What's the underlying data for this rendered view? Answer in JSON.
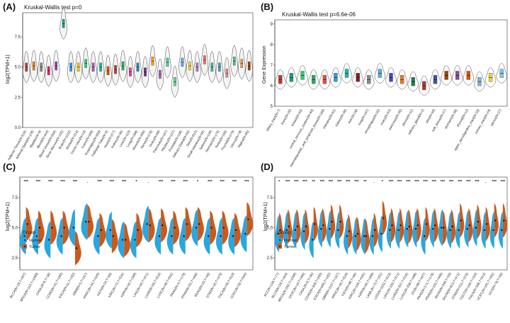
{
  "figure": {
    "colors": {
      "normal": "#2aa6e0",
      "tumor": "#c85a1e",
      "star": "#111111"
    },
    "panel_letters": [
      "(A)",
      "(B)",
      "(C)",
      "(D)"
    ]
  },
  "chart_data": [
    {
      "id": "A",
      "type": "violin",
      "title": "Kruskal-Wallis test p=0",
      "ylabel": "log2(TPM+1)",
      "yticks": [
        0.0,
        2.5,
        5.0,
        7.5
      ],
      "ylim": [
        0,
        9.5
      ],
      "categories": [
        "Adipose Tissue(N=515)",
        "Adrenal Gland(N=128)",
        "Bladder(N=9)",
        "Blood(N=444)",
        "Blood Vessel(N=656)",
        "Bone Marrow(N=102)",
        "Brain(N=1152)",
        "Breast(N=214)",
        "Cervix Uteri(N=10)",
        "Colon(N=339)",
        "Esophagus(N=659)",
        "Fallopian Tube(N=5)",
        "Heart(N=377)",
        "Kidney(N=36)",
        "Liver(N=110)",
        "Lung(N=288)",
        "Muscle(N=396)",
        "Nerve(N=278)",
        "Ovary(N=88)",
        "Pancreas(N=167)",
        "Pituitary(N=107)",
        "Prostate(N=106)",
        "Salivary Gland(N=55)",
        "Skin(N=812)",
        "Small Intestine(N=92)",
        "Spleen(N=100)",
        "Stomach(N=175)",
        "Testis(N=165)",
        "Thyroid(N=279)",
        "Uterus(N=78)",
        "Vagina(N=85)"
      ],
      "medians": [
        5.0,
        5.1,
        5.0,
        4.7,
        5.1,
        8.6,
        5.0,
        5.0,
        5.3,
        5.0,
        5.0,
        4.7,
        4.8,
        5.1,
        4.6,
        5.0,
        4.6,
        5.5,
        4.4,
        5.4,
        3.8,
        5.4,
        5.1,
        5.0,
        5.6,
        5.0,
        5.0,
        4.5,
        5.5,
        5.3,
        5.1
      ],
      "colors": [
        "#c0392b",
        "#e67e22",
        "#7f8c8d",
        "#e91e63",
        "#8e44ad",
        "#16a085",
        "#3498db",
        "#f1c40f",
        "#2ecc71",
        "#9b59b6",
        "#1abc9c",
        "#d35400",
        "#c0392b",
        "#27ae60",
        "#e84393",
        "#2980b9",
        "#6c3483",
        "#f39c12",
        "#a569bd",
        "#48c9b0",
        "#58d68d",
        "#5dade2",
        "#f4d03f",
        "#af7ac5",
        "#ec7063",
        "#45b39d",
        "#5499c7",
        "#d98880",
        "#52be80",
        "#eb984e",
        "#a04000"
      ]
    },
    {
      "id": "B",
      "type": "violin",
      "title": "Kruskal-Wallis test p=6.6e-06",
      "ylabel": "Gene Expression",
      "yticks": [
        5,
        6,
        7,
        8,
        9
      ],
      "ylim": [
        5,
        9.2
      ],
      "categories": [
        "biliary_tract(N=7)",
        "bone(N=26)",
        "breast(N=60)",
        "central_nervous_system(N=69)",
        "haematopoietic_and_lymphoid_tissue(N=189)",
        "intestine(N=61)",
        "kidney(N=36)",
        "liver(N=28)",
        "lung(N=197)",
        "oesophagus(N=32)",
        "ovary(N=52)",
        "pancreas(N=35)",
        "pleura(N=11)",
        "salivary_gland(N=2)",
        "skin(N=59)",
        "soft_tissue(N=27)",
        "stomach(N=38)",
        "thyroid(N=12)",
        "upper_aerodigestive_tract(N=33)",
        "urinary_tract(N=24)",
        "uterus(N=27)"
      ],
      "medians": [
        6.3,
        6.4,
        6.5,
        6.3,
        6.3,
        6.4,
        6.6,
        6.4,
        6.3,
        6.6,
        6.4,
        6.3,
        6.2,
        6.0,
        6.3,
        6.5,
        6.5,
        6.5,
        6.2,
        6.4,
        6.6
      ],
      "colors": [
        "#c0392b",
        "#16a085",
        "#2ecc71",
        "#27ae60",
        "#e74c3c",
        "#3498db",
        "#1abc9c",
        "#8e1b1b",
        "#7f8c8d",
        "#5dade2",
        "#3b4cc0",
        "#e67e22",
        "#1e8449",
        "#b03a2e",
        "#3f51b5",
        "#a04000",
        "#884ea0",
        "#d35400",
        "#7fb3d5",
        "#e9d33b",
        "#85c1e9"
      ]
    },
    {
      "id": "C",
      "type": "split-violin",
      "ylabel": "log2(TPM+1)",
      "yticks": [
        2.5,
        5.0,
        7.5
      ],
      "ylim": [
        1.5,
        9.2
      ],
      "legend": {
        "title": "Group",
        "entries": [
          "Normal",
          "Tumor"
        ],
        "position": "bottom-left"
      },
      "categories": [
        "BLCA(N=19,T=407)",
        "BRCA(N=113,T=1099)",
        "CHOL(N=9,T=36)",
        "COAD(N=41,T=290)",
        "ESCA(N=11,T=182)",
        "GBM(N=5,T=167)",
        "HNSC(N=44,T=520)",
        "KICH(N=24,T=66)",
        "KIRC(N=72,T=531)",
        "KIRP(N=32,T=289)",
        "LIHC(N=50,T=371)",
        "LUAD(N=59,T=515)",
        "LUSC(N=49,T=501)",
        "PAAD(N=4,T=178)",
        "PRAD(N=52,T=496)",
        "READ(N=10,T=93)",
        "STAD(N=32,T=375)",
        "THCA(N=59,T=510)",
        "UCEC(N=35,T=544)"
      ],
      "significance": [
        "***",
        "***",
        "***",
        "***",
        "***",
        ".",
        "***",
        "***",
        "***",
        "*",
        ".",
        "***",
        "***",
        "***",
        "*",
        "***",
        "***",
        "***",
        "***"
      ],
      "normal_medians": [
        4.3,
        4.3,
        4.0,
        4.3,
        5.0,
        5.5,
        4.3,
        4.8,
        4.0,
        4.0,
        5.3,
        4.3,
        4.3,
        4.3,
        5.0,
        4.3,
        4.3,
        4.3,
        4.5
      ],
      "tumor_medians": [
        5.3,
        5.0,
        5.0,
        5.0,
        3.3,
        5.5,
        4.8,
        4.3,
        4.0,
        4.8,
        5.2,
        5.2,
        5.0,
        5.3,
        5.3,
        5.0,
        5.0,
        4.8,
        5.7
      ]
    },
    {
      "id": "D",
      "type": "split-violin",
      "ylabel": "log2(TPM+1)",
      "yticks": [
        2.5,
        5.0,
        7.5
      ],
      "ylim": [
        1.5,
        9.2
      ],
      "legend": {
        "title": "Group",
        "entries": [
          "Normal",
          "Tumor"
        ],
        "position": "bottom-left"
      },
      "categories": [
        "ACC(N=128,T=77)",
        "BLCA(N=28,T=404)",
        "BRCA(N=292,T=1099)",
        "CESC(N=13,T=306)",
        "CHOL(N=9,T=36)",
        "COAD(N=349,T=290)",
        "ESCA(N=666,T=182)",
        "GBM(N=1157,T=167)",
        "HNSC(N=44,T=520)",
        "KICH(N=89,T=66)",
        "KIRC(N=100,T=531)",
        "KIRP(N=60,T=289)",
        "LAML(N=70,T=151)",
        "LGG(N=1152,T=523)",
        "LIHC(N=160,T=371)",
        "LUAD(N=347,T=515)",
        "LUSC(N=338,T=498)",
        "OV(N=88,T=427)",
        "PAAD(N=171,T=178)",
        "PRAD(N=152,T=496)",
        "READ(N=349,T=93)",
        "SKCM(N=813,T=471)",
        "STAD(N=211,T=375)",
        "TGCT(N=165,T=154)",
        "THCA(N=338,T=512)",
        "UCEC(N=101,T=181)",
        "UCS(N=78,T=56)"
      ],
      "significance": [
        "*",
        "***",
        "***",
        "***",
        "**",
        "***",
        "***",
        "***",
        "***",
        "***",
        "**",
        ".",
        "*",
        "***",
        "***",
        "***",
        "***",
        "***",
        "***",
        "***",
        "***",
        "***",
        "***",
        "***",
        ".",
        "***",
        "***"
      ],
      "normal_medians": [
        4.5,
        4.8,
        4.8,
        4.7,
        4.0,
        4.9,
        4.9,
        4.8,
        4.3,
        4.3,
        4.3,
        4.3,
        4.5,
        4.8,
        4.8,
        4.9,
        4.9,
        4.3,
        4.9,
        5.0,
        4.8,
        4.8,
        4.9,
        5.0,
        4.8,
        4.8,
        4.8
      ],
      "tumor_medians": [
        4.8,
        5.1,
        5.1,
        5.1,
        5.3,
        5.2,
        5.5,
        5.5,
        4.7,
        4.5,
        4.3,
        4.8,
        5.8,
        5.2,
        5.2,
        5.1,
        5.2,
        5.3,
        5.2,
        5.0,
        5.1,
        5.6,
        5.2,
        5.5,
        5.3,
        5.6,
        5.6
      ]
    }
  ]
}
